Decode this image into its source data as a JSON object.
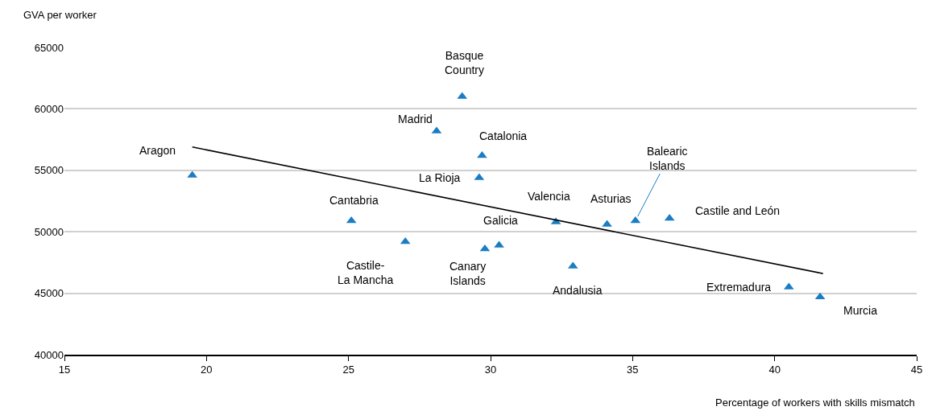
{
  "chart_data": {
    "type": "scatter",
    "xlabel": "Percentage of workers with skills mismatch",
    "ylabel": "GVA per worker",
    "xlim": [
      15,
      45
    ],
    "xticks": [
      15,
      20,
      25,
      30,
      35,
      40,
      45
    ],
    "ylim": [
      40000,
      65000
    ],
    "yticks": [
      40000,
      45000,
      50000,
      55000,
      60000,
      65000
    ],
    "grid": "y",
    "marker": "triangle",
    "series": [
      {
        "color": "#1a7dc4",
        "x": [
          19.5,
          29.0,
          28.1,
          29.7,
          29.6,
          25.1,
          27.0,
          29.8,
          30.3,
          32.3,
          32.9,
          34.1,
          35.1,
          36.3,
          40.5,
          41.6
        ],
        "values": [
          54600,
          61000,
          58200,
          56200,
          54400,
          50900,
          49200,
          48600,
          48900,
          50800,
          47200,
          50600,
          50900,
          51100,
          45500,
          44700
        ]
      },
      {
        "type": "line",
        "color": "#000000",
        "line_style": "solid",
        "marker": "none",
        "x": [
          19.5,
          41.7
        ],
        "values": [
          56900,
          46600
        ]
      }
    ],
    "annotations": [
      {
        "text": "Aragon",
        "x": 19.5,
        "y": 54600
      },
      {
        "text": "Basque Country",
        "x": 29.0,
        "y": 61000
      },
      {
        "text": "Madrid",
        "x": 28.1,
        "y": 58200
      },
      {
        "text": "Catalonia",
        "x": 29.7,
        "y": 56200
      },
      {
        "text": "La Rioja",
        "x": 29.6,
        "y": 54400
      },
      {
        "text": "Cantabria",
        "x": 25.1,
        "y": 50900
      },
      {
        "text": "Castile-La Mancha",
        "x": 27.0,
        "y": 49200
      },
      {
        "text": "Canary Islands",
        "x": 29.8,
        "y": 48600
      },
      {
        "text": "Galicia",
        "x": 30.3,
        "y": 48900
      },
      {
        "text": "Valencia",
        "x": 32.3,
        "y": 50800
      },
      {
        "text": "Andalusia",
        "x": 32.9,
        "y": 47200
      },
      {
        "text": "Asturias",
        "x": 34.1,
        "y": 50600
      },
      {
        "text": "Balearic Islands",
        "x": 35.1,
        "y": 50900
      },
      {
        "text": "Castile and León",
        "x": 36.3,
        "y": 51100
      },
      {
        "text": "Extremadura",
        "x": 40.5,
        "y": 45500
      },
      {
        "text": "Murcia",
        "x": 41.6,
        "y": 44700
      }
    ]
  }
}
